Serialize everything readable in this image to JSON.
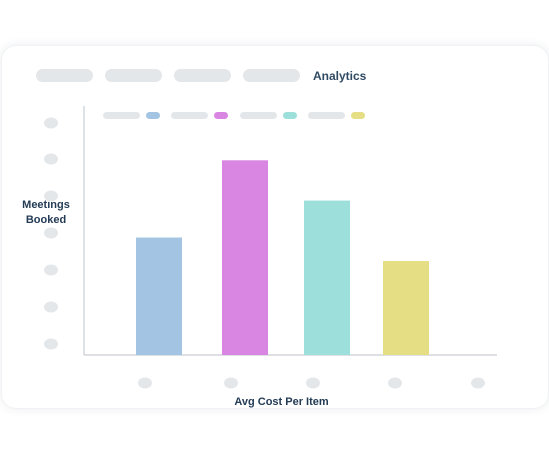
{
  "header": {
    "title": "Analytics",
    "tabs": [
      "",
      "",
      "",
      ""
    ]
  },
  "chart_data": {
    "type": "bar",
    "categories": [
      "",
      "",
      "",
      "",
      ""
    ],
    "values": [
      35,
      58,
      46,
      28,
      0
    ],
    "colors": [
      "#a3c4e2",
      "#d986e3",
      "#9de0db",
      "#e6de84",
      "#ffffff"
    ],
    "xlabel": "Avg Cost Per Item",
    "ylabel": "Meetings Booked",
    "ylim": [
      0,
      70
    ],
    "y_ticks": [
      "",
      "",
      "",
      "",
      "",
      "",
      ""
    ],
    "legend": [
      {
        "name": "",
        "color": "#a3c4e2"
      },
      {
        "name": "",
        "color": "#d986e3"
      },
      {
        "name": "",
        "color": "#9de0db"
      },
      {
        "name": "",
        "color": "#e6de84"
      }
    ],
    "legend_position": "top-left",
    "grid": false,
    "axis_color": "#c9ced3",
    "placeholder_color": "#e4e7ea"
  }
}
